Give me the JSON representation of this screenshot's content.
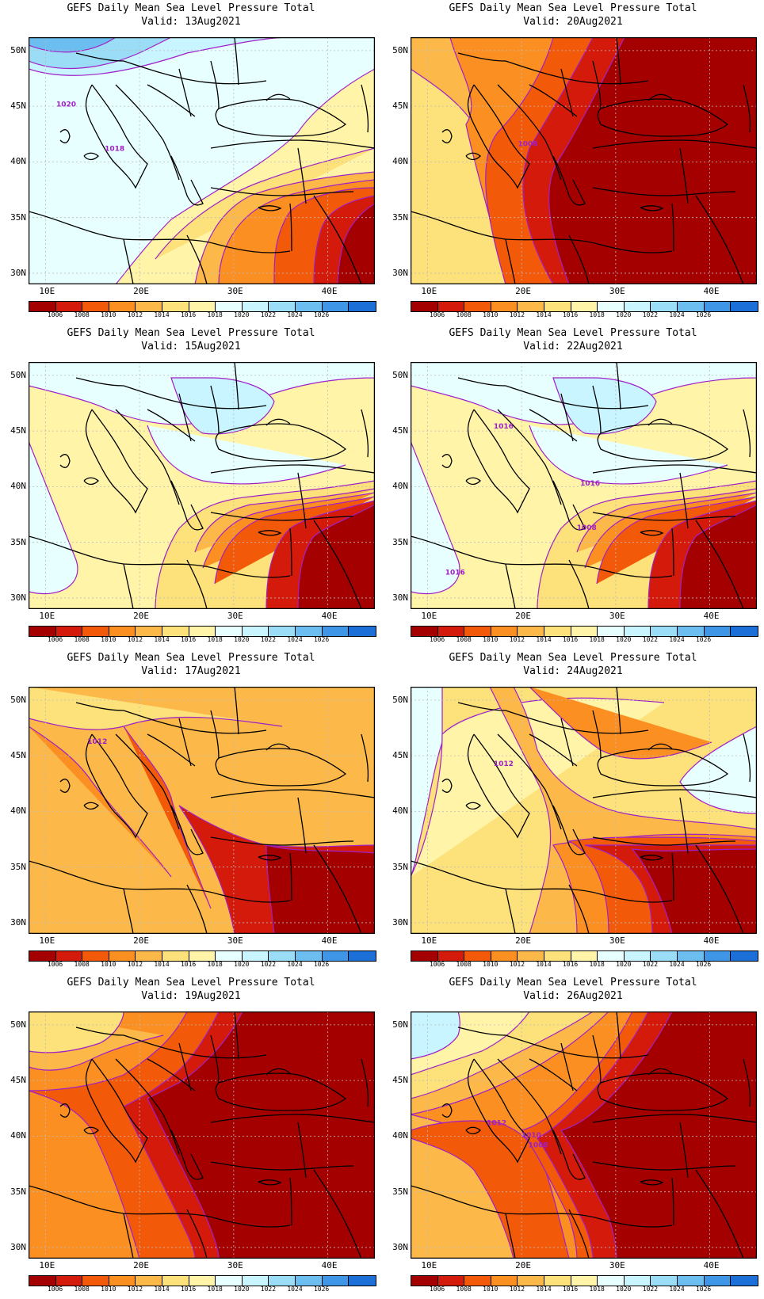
{
  "figure": {
    "title": "GEFS Daily Mean Sea Level Pressure Total",
    "valid_label": "Valid:",
    "lat_labels": [
      "50N",
      "45N",
      "40N",
      "35N",
      "30N"
    ],
    "lon_labels": [
      "10E",
      "20E",
      "30E",
      "40E"
    ],
    "colorbar": {
      "colors": [
        "#a50000",
        "#d41a0b",
        "#f25a0a",
        "#fb8f22",
        "#fcb848",
        "#fde17a",
        "#fff4a8",
        "#e8ffff",
        "#c8f5ff",
        "#9bdcf7",
        "#6cbdf0",
        "#3f95e6",
        "#1b6fd7"
      ],
      "tick_labels": [
        "1006",
        "1008",
        "1010",
        "1012",
        "1014",
        "1016",
        "1018",
        "1020",
        "1022",
        "1024",
        "1026"
      ]
    },
    "contour_color": "#a020c8"
  },
  "panels": [
    {
      "valid": "13Aug2021",
      "labels": [
        "1020",
        "1018"
      ],
      "pattern": "high-north-west"
    },
    {
      "valid": "20Aug2021",
      "labels": [
        "1008"
      ],
      "pattern": "low-east"
    },
    {
      "valid": "15Aug2021",
      "labels": [],
      "pattern": "mixed-high"
    },
    {
      "valid": "22Aug2021",
      "labels": [
        "1016",
        "1016",
        "1008",
        "1016"
      ],
      "pattern": "mixed-high"
    },
    {
      "valid": "17Aug2021",
      "labels": [
        "1012"
      ],
      "pattern": "moderate-low"
    },
    {
      "valid": "24Aug2021",
      "labels": [
        "1012"
      ],
      "pattern": "moderate"
    },
    {
      "valid": "19Aug2021",
      "labels": [],
      "pattern": "deep-low"
    },
    {
      "valid": "26Aug2021",
      "labels": [
        "1012",
        "1010",
        "1008"
      ],
      "pattern": "low-east-high-nw"
    }
  ]
}
